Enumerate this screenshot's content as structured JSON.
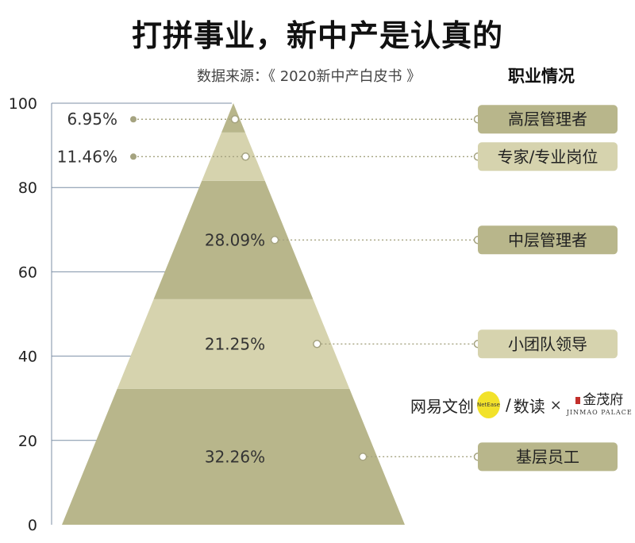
{
  "title": "打拼事业，新中产是认真的",
  "source": "数据来源：《 2020新中产白皮书 》",
  "section_title": "职业情况",
  "logo": {
    "netease": "网易文创",
    "badge": "NetEase",
    "slash": "/",
    "shudu": "数读",
    "times": "×",
    "jinmao_cn": "金茂府",
    "jinmao_en": "JINMAO PALACE"
  },
  "colors": {
    "dark": "#b8b68b",
    "light": "#d6d3ae",
    "label_text": "#333333",
    "dot": "#a5a380",
    "grid": "#7c8fa6"
  },
  "chart_data": {
    "type": "pyramid",
    "y_ticks": [
      "0",
      "20",
      "40",
      "60",
      "80",
      "100"
    ],
    "ylim": [
      0,
      100
    ],
    "segments": [
      {
        "category": "基层员工",
        "value": 32.26,
        "label": "32.26%",
        "shade": "dark"
      },
      {
        "category": "小团队领导",
        "value": 21.25,
        "label": "21.25%",
        "shade": "light"
      },
      {
        "category": "中层管理者",
        "value": 28.09,
        "label": "28.09%",
        "shade": "dark"
      },
      {
        "category": "专家/专业岗位",
        "value": 11.46,
        "label": "11.46%",
        "shade": "light"
      },
      {
        "category": "高层管理者",
        "value": 6.95,
        "label": "6.95%",
        "shade": "dark"
      }
    ]
  }
}
